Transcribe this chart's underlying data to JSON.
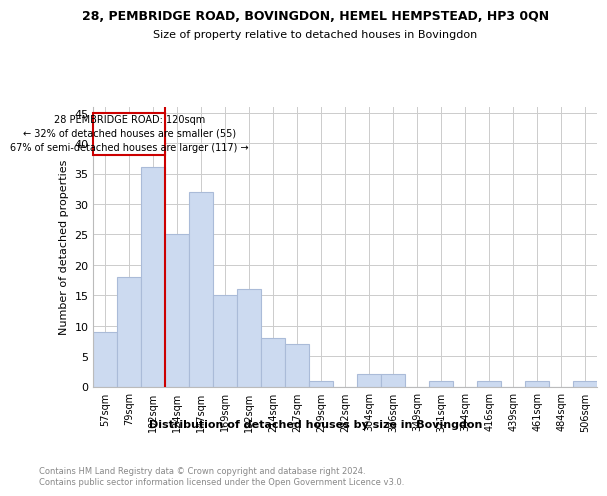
{
  "title": "28, PEMBRIDGE ROAD, BOVINGDON, HEMEL HEMPSTEAD, HP3 0QN",
  "subtitle": "Size of property relative to detached houses in Bovingdon",
  "xlabel": "Distribution of detached houses by size in Bovingdon",
  "ylabel": "Number of detached properties",
  "categories": [
    "57sqm",
    "79sqm",
    "102sqm",
    "124sqm",
    "147sqm",
    "169sqm",
    "192sqm",
    "214sqm",
    "237sqm",
    "259sqm",
    "282sqm",
    "304sqm",
    "326sqm",
    "349sqm",
    "371sqm",
    "394sqm",
    "416sqm",
    "439sqm",
    "461sqm",
    "484sqm",
    "506sqm"
  ],
  "values": [
    9,
    18,
    36,
    25,
    32,
    15,
    16,
    8,
    7,
    1,
    0,
    2,
    2,
    0,
    1,
    0,
    1,
    0,
    1,
    0,
    1
  ],
  "bar_color": "#ccdaf0",
  "bar_edge_color": "#aabbd8",
  "highlight_bar_index": 3,
  "highlight_line_color": "#cc0000",
  "annotation_box_color": "#cc0000",
  "annotation_line1": "28 PEMBRIDGE ROAD: 120sqm",
  "annotation_line2": "← 32% of detached houses are smaller (55)",
  "annotation_line3": "67% of semi-detached houses are larger (117) →",
  "ylim": [
    0,
    46
  ],
  "yticks": [
    0,
    5,
    10,
    15,
    20,
    25,
    30,
    35,
    40,
    45
  ],
  "footer_text": "Contains HM Land Registry data © Crown copyright and database right 2024.\nContains public sector information licensed under the Open Government Licence v3.0.",
  "background_color": "#ffffff",
  "grid_color": "#cccccc"
}
